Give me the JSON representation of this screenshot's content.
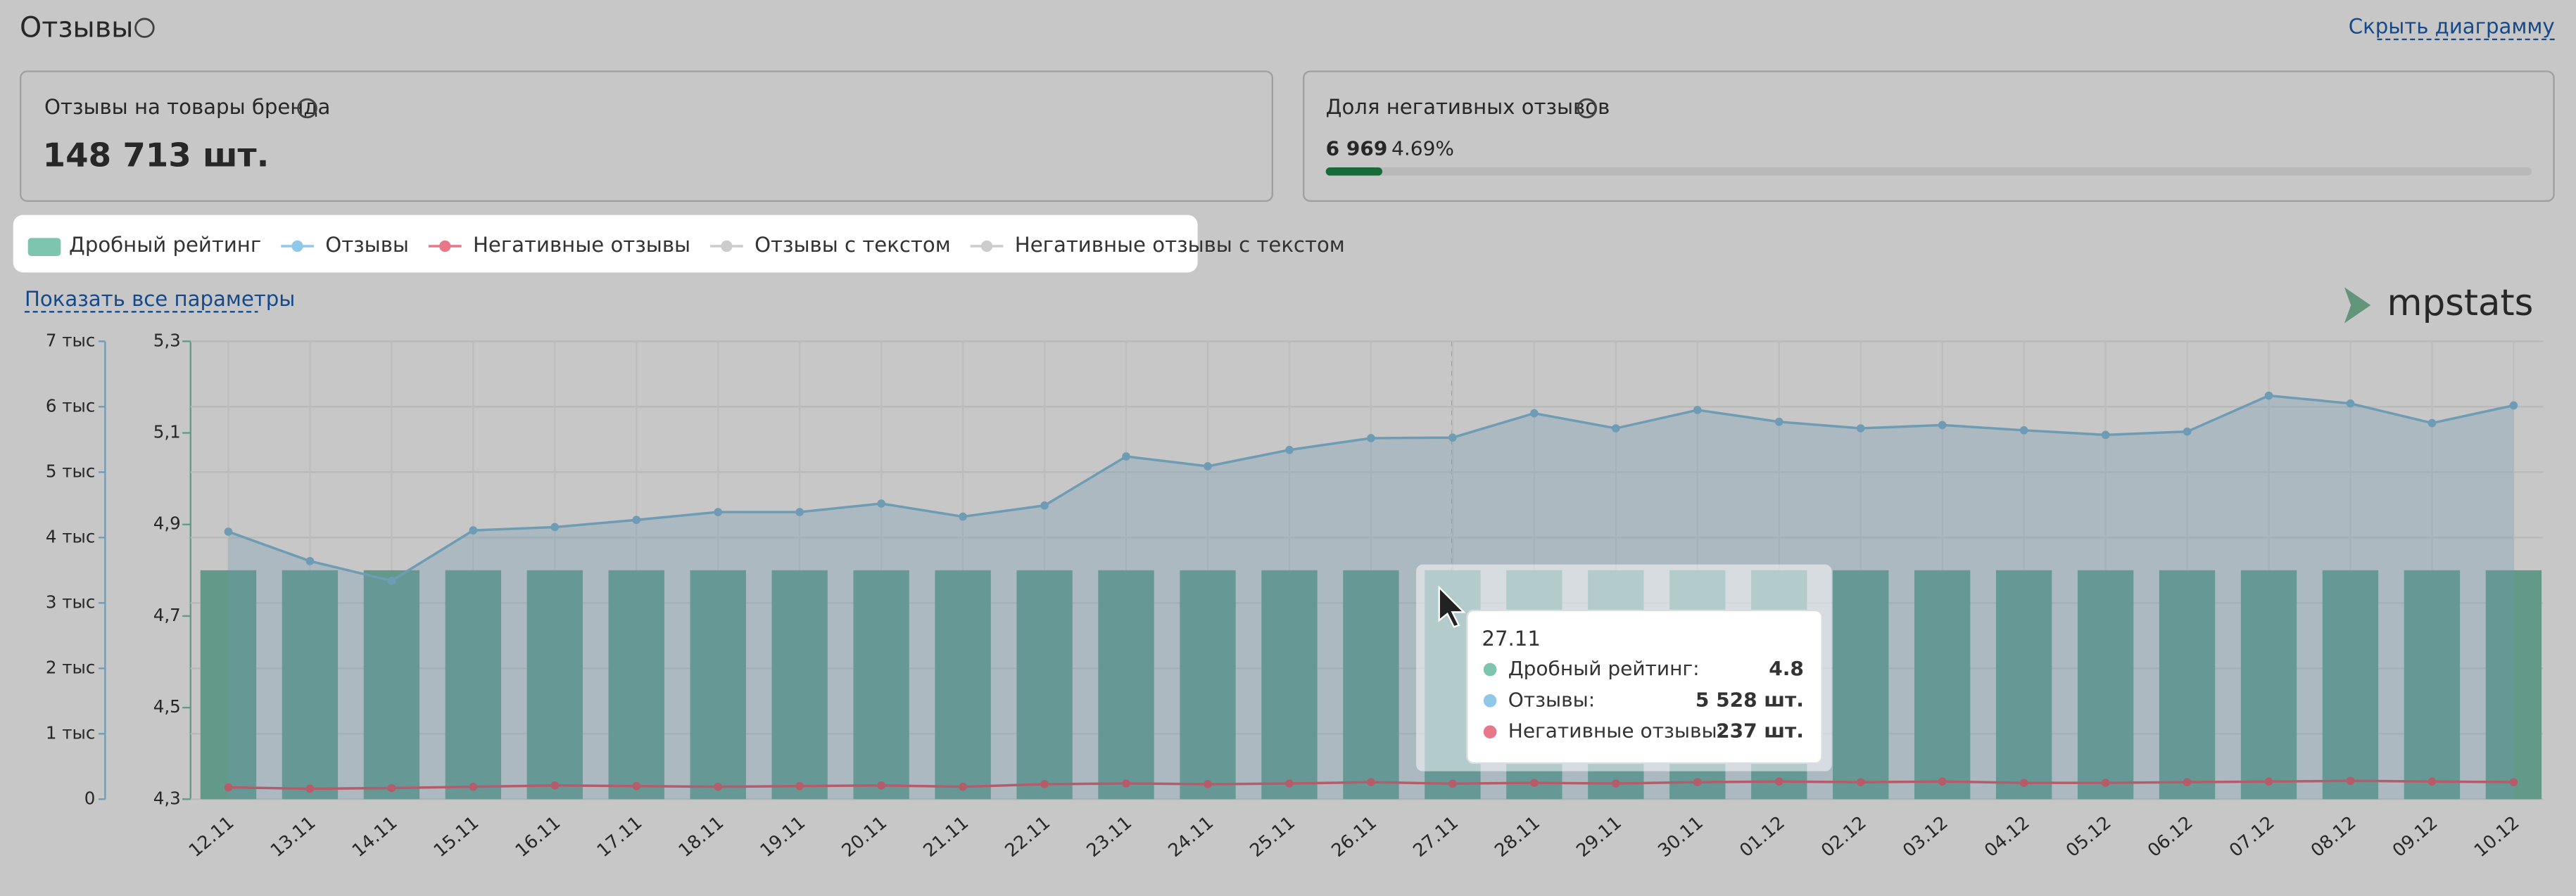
{
  "header": {
    "title": "Отзывы",
    "action": "Скрыть диаграмму"
  },
  "cards": [
    {
      "label": "Отзывы на товары бренда",
      "value": "148 713 шт."
    },
    {
      "label": "Доля негативных отзывов",
      "count": "6 969",
      "share": {
        "value": 4.69,
        "label": "4.69%"
      }
    }
  ],
  "show_all": "Показать все параметры",
  "logo": "mpstats",
  "chart_data": {
    "type": "bar",
    "categories": [
      "12.11",
      "13.11",
      "14.11",
      "15.11",
      "16.11",
      "17.11",
      "18.11",
      "19.11",
      "20.11",
      "21.11",
      "22.11",
      "23.11",
      "24.11",
      "25.11",
      "26.11",
      "27.11",
      "28.11",
      "29.11",
      "30.11",
      "01.12",
      "02.12",
      "03.12",
      "04.12",
      "05.12",
      "06.12",
      "07.12",
      "08.12",
      "09.12",
      "10.12"
    ],
    "series": [
      {
        "name": "Дробный рейтинг",
        "type": "bar",
        "axis": "y2",
        "color": "#7ec5b0",
        "values": [
          4.8,
          4.8,
          4.8,
          4.8,
          4.8,
          4.8,
          4.8,
          4.8,
          4.8,
          4.8,
          4.8,
          4.8,
          4.8,
          4.8,
          4.8,
          4.8,
          4.8,
          4.8,
          4.8,
          4.8,
          4.8,
          4.8,
          4.8,
          4.8,
          4.8,
          4.8,
          4.8,
          4.8,
          4.8
        ]
      },
      {
        "name": "Отзывы",
        "type": "line",
        "area": true,
        "color": "#8fc8e8",
        "values": [
          4090,
          3640,
          3340,
          4110,
          4160,
          4270,
          4390,
          4390,
          4520,
          4320,
          4490,
          5240,
          5090,
          5340,
          5520,
          5528,
          5900,
          5670,
          5950,
          5770,
          5670,
          5720,
          5640,
          5570,
          5620,
          6170,
          6050,
          5750,
          6020
        ]
      },
      {
        "name": "Негативные отзывы",
        "type": "line",
        "color": "#e8778a",
        "values": [
          180,
          160,
          170,
          190,
          210,
          200,
          190,
          200,
          210,
          190,
          230,
          240,
          230,
          240,
          260,
          237,
          250,
          240,
          260,
          270,
          260,
          270,
          250,
          250,
          260,
          270,
          280,
          270,
          260
        ]
      }
    ],
    "inactive_series": [
      "Отзывы с текстом",
      "Негативные отзывы с текстом"
    ],
    "ylim": [
      0,
      7000
    ],
    "yticks": [
      0,
      {
        "value": 1000,
        "label": "1 тыс"
      },
      {
        "value": 2000,
        "label": "2 тыс"
      },
      {
        "value": 3000,
        "label": "3 тыс"
      },
      {
        "value": 4000,
        "label": "4 тыс"
      },
      {
        "value": 5000,
        "label": "5 тыс"
      },
      {
        "value": 6000,
        "label": "6 тыс"
      },
      {
        "value": 7000,
        "label": "7 тыс"
      }
    ],
    "y2lim": [
      4.3,
      5.3
    ],
    "y2ticks": [
      {
        "value": 4.3,
        "label": "4,3"
      },
      {
        "value": 4.5,
        "label": "4,5"
      },
      {
        "value": 4.7,
        "label": "4,7"
      },
      {
        "value": 4.9,
        "label": "4,9"
      },
      {
        "value": 5.1,
        "label": "5,1"
      },
      {
        "value": 5.3,
        "label": "5,3"
      }
    ],
    "grid": true
  },
  "tooltip": {
    "category": "27.11",
    "rows": [
      {
        "name": "Дробный рейтинг:",
        "value": "4.8"
      },
      {
        "name": "Отзывы:",
        "value": "5 528 шт."
      },
      {
        "name": "Негативные отзывы:",
        "value": "237 шт."
      }
    ]
  }
}
